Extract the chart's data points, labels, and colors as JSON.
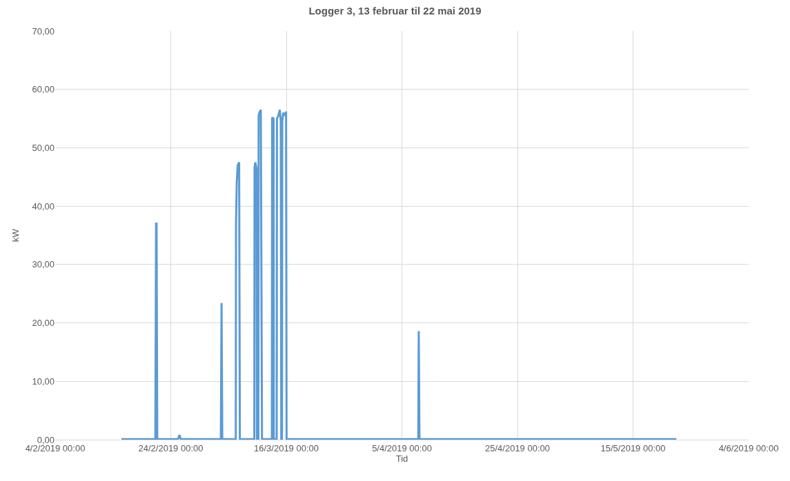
{
  "chart_data": {
    "type": "line",
    "title": "Logger 3, 13 februar til 22 mai 2019",
    "xlabel": "Tid",
    "ylabel": "kW",
    "x": [
      "2019-02-15T11:00",
      "2019-02-21T08:00",
      "2019-02-21T11:00",
      "2019-02-21T13:00",
      "2019-02-21T16:00",
      "2019-02-25T06:00",
      "2019-02-25T12:00",
      "2019-02-25T18:00",
      "2019-03-04T16:00",
      "2019-03-04T19:00",
      "2019-03-04T22:00",
      "2019-03-07T06:00",
      "2019-03-07T07:00",
      "2019-03-07T10:00",
      "2019-03-07T14:00",
      "2019-03-07T20:00",
      "2019-03-07T23:00",
      "2019-03-10T11:00",
      "2019-03-10T12:00",
      "2019-03-10T15:00",
      "2019-03-10T20:00",
      "2019-03-10T22:00",
      "2019-03-11T04:00",
      "2019-03-11T05:00",
      "2019-03-11T08:00",
      "2019-03-11T14:00",
      "2019-03-11T19:00",
      "2019-03-13T12:00",
      "2019-03-13T13:00",
      "2019-03-13T19:00",
      "2019-03-13T20:00",
      "2019-03-14T08:00",
      "2019-03-14T09:00",
      "2019-03-14T15:00",
      "2019-03-14T21:00",
      "2019-03-15T01:00",
      "2019-03-15T03:00",
      "2019-03-15T06:00",
      "2019-03-15T07:00",
      "2019-03-15T11:00",
      "2019-03-15T17:00",
      "2019-03-15T23:00",
      "2019-03-16T01:00",
      "2019-04-07T20:00",
      "2019-04-07T22:00",
      "2019-04-08T01:00",
      "2019-05-22T12:00"
    ],
    "series": [
      {
        "color": "#5b9bd5",
        "values": [
          0.1,
          0.1,
          37,
          37,
          0.1,
          0.1,
          0.8,
          0.1,
          0.1,
          23.4,
          0.1,
          0.1,
          37,
          44,
          47,
          47.5,
          0.1,
          0.1,
          46.5,
          47.5,
          46.5,
          0.1,
          0.1,
          55.5,
          56,
          56.5,
          0.1,
          0.1,
          55.2,
          55,
          0.1,
          0.1,
          55,
          55.5,
          56.5,
          54.5,
          0.1,
          0.1,
          54.5,
          56,
          55.5,
          56.2,
          0.1,
          0.1,
          18.6,
          0.1,
          0.1
        ]
      }
    ],
    "xlim": [
      "2019-02-04",
      "2019-06-04"
    ],
    "xticks": [
      {
        "value": "2019-02-04",
        "label": "4/2/2019 00:00"
      },
      {
        "value": "2019-02-24",
        "label": "24/2/2019 00:00"
      },
      {
        "value": "2019-03-16",
        "label": "16/3/2019 00:00"
      },
      {
        "value": "2019-04-05",
        "label": "5/4/2019 00:00"
      },
      {
        "value": "2019-04-25",
        "label": "25/4/2019 00:00"
      },
      {
        "value": "2019-05-15",
        "label": "15/5/2019 00:00"
      },
      {
        "value": "2019-06-04",
        "label": "4/6/2019 00:00"
      }
    ],
    "ylim": [
      0,
      70
    ],
    "yticks": [
      {
        "value": 0,
        "label": "0,00"
      },
      {
        "value": 10,
        "label": "10,00"
      },
      {
        "value": 20,
        "label": "20,00"
      },
      {
        "value": 30,
        "label": "30,00"
      },
      {
        "value": 40,
        "label": "40,00"
      },
      {
        "value": 50,
        "label": "50,00"
      },
      {
        "value": 60,
        "label": "60,00"
      },
      {
        "value": 70,
        "label": "70,00"
      }
    ],
    "grid": true,
    "legend": false,
    "marker": "none",
    "line_style": "solid"
  }
}
